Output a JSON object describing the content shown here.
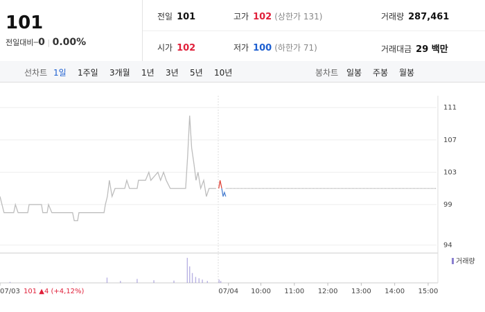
{
  "header": {
    "price": "101",
    "change_label": "전일대비",
    "change": "0",
    "change_pct": "0.00%"
  },
  "stats": [
    {
      "label": "전일",
      "value": "101"
    },
    {
      "label": "고가",
      "value": "102",
      "note": "(상한가 131)"
    },
    {
      "label": "거래량",
      "value": "287,461"
    },
    {
      "label": "시가",
      "value": "102"
    },
    {
      "label": "저가",
      "value": "100",
      "note": "(하한가 71)"
    },
    {
      "label": "거래대금",
      "value": "29 백만"
    }
  ],
  "tabs": {
    "line_label": "선차트",
    "line": [
      "1일",
      "1주일",
      "3개월",
      "1년",
      "3년",
      "5년",
      "10년"
    ],
    "candle_label": "봉차트",
    "candle": [
      "일봉",
      "주봉",
      "월봉"
    ]
  },
  "chart_data": {
    "type": "line",
    "annotation": "101 ▲4 (+4,12%)",
    "xlim": [
      0,
      13.05
    ],
    "xticks": [
      {
        "value": 0,
        "label": "07/03"
      },
      {
        "value": 6.83,
        "label": "07/04"
      },
      {
        "value": 7.8,
        "label": "10:00"
      },
      {
        "value": 8.8,
        "label": "11:00"
      },
      {
        "value": 9.8,
        "label": "12:00"
      },
      {
        "value": 10.8,
        "label": "13:00"
      },
      {
        "value": 11.8,
        "label": "14:00"
      },
      {
        "value": 12.8,
        "label": "15:00"
      }
    ],
    "ylim": [
      93,
      112.3
    ],
    "yticks": [
      94,
      99,
      103,
      107,
      111
    ],
    "grid": true,
    "reference": 101,
    "series": [
      {
        "color": "#bdbdbd",
        "x": [
          0,
          0.06,
          0.12,
          0.41,
          0.46,
          0.54,
          0.83,
          0.87,
          1.24,
          1.28,
          1.41,
          1.45,
          1.55,
          2.17,
          2.22,
          2.32,
          2.36,
          3.11,
          3.15,
          3.21,
          3.27,
          3.35,
          3.44,
          3.73,
          3.79,
          3.87,
          4.1,
          4.14,
          4.35,
          4.45,
          4.51,
          4.72,
          4.8,
          4.89,
          4.97,
          5.09,
          5.55,
          5.61,
          5.67,
          5.73,
          5.8,
          5.86,
          5.92,
          6.0,
          6.09,
          6.17,
          6.25,
          6.46
        ],
        "values": [
          100,
          99,
          98,
          98,
          99,
          98,
          98,
          99,
          99,
          98,
          98,
          99,
          98,
          98,
          97,
          97,
          98,
          98,
          99,
          100,
          102,
          100,
          101,
          101,
          102,
          101,
          101,
          102,
          102,
          103,
          102,
          103,
          102,
          103,
          102,
          101,
          101,
          105,
          110,
          106,
          104,
          102,
          103,
          101,
          102,
          100,
          101,
          101
        ]
      },
      {
        "color": "#e0453a",
        "x": [
          6.54,
          6.58,
          6.63
        ],
        "values": [
          101,
          102,
          101
        ]
      },
      {
        "color": "#4a7fd0",
        "x": [
          6.63,
          6.67,
          6.71,
          6.75
        ],
        "values": [
          101,
          100,
          100.5,
          100
        ]
      }
    ],
    "volume": {
      "name": "거래량",
      "color": "#8a7fd0",
      "ylim": [
        0,
        40000
      ],
      "x": [
        0.3,
        1.2,
        2.2,
        3.2,
        3.6,
        4.1,
        4.6,
        5.2,
        5.6,
        5.67,
        5.75,
        5.85,
        5.95,
        6.05,
        6.2,
        6.55,
        6.6
      ],
      "values": [
        1500,
        1200,
        1000,
        8000,
        3000,
        6000,
        4000,
        3500,
        38000,
        25000,
        15000,
        9000,
        7000,
        5000,
        3000,
        5000,
        3000
      ]
    }
  }
}
